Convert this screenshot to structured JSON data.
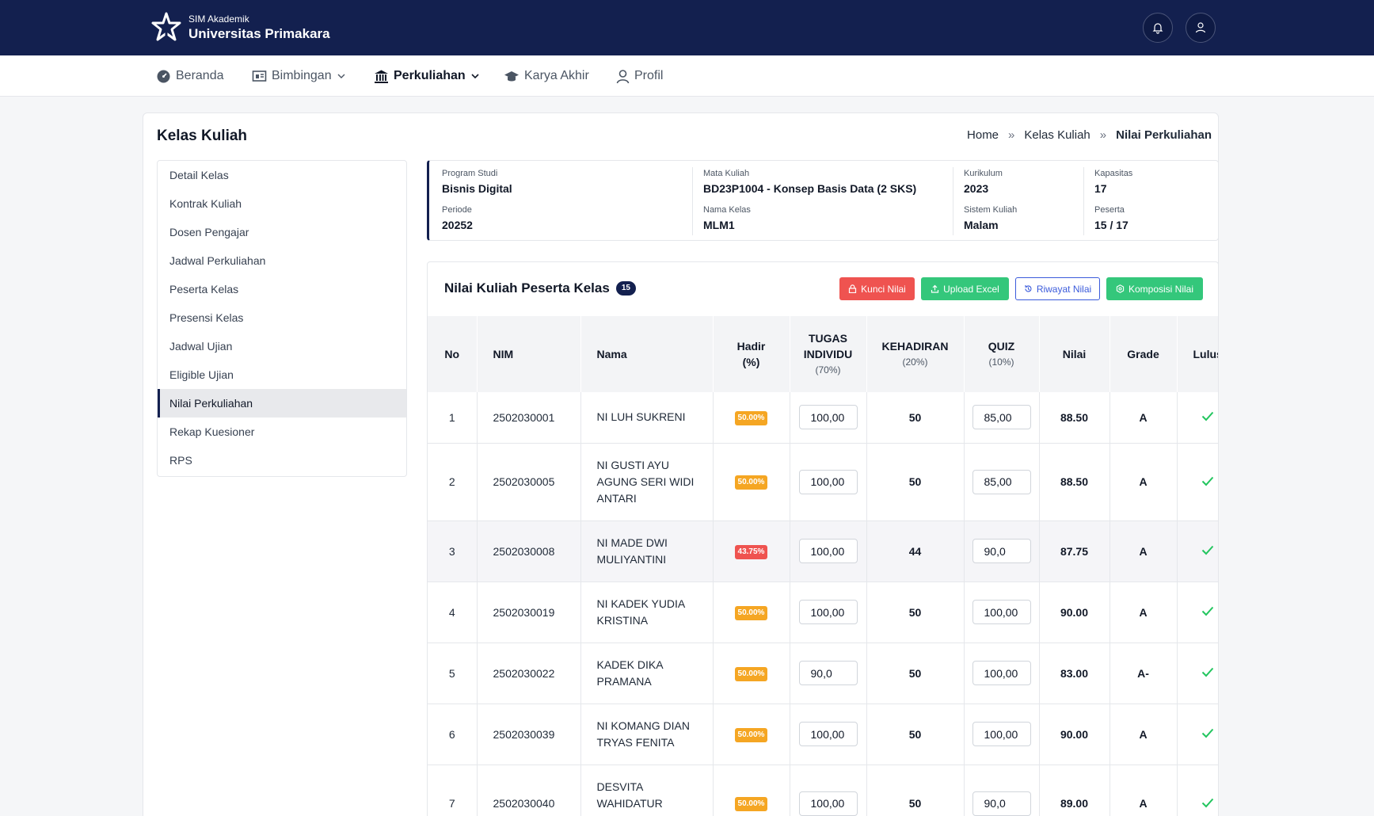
{
  "brand": {
    "subtitle": "SIM Akademik",
    "title": "Universitas Primakara"
  },
  "nav": [
    {
      "label": "Beranda",
      "icon": "dashboard-icon"
    },
    {
      "label": "Bimbingan",
      "icon": "classroom-icon"
    },
    {
      "label": "Perkuliahan",
      "icon": "institution-icon"
    },
    {
      "label": "Karya Akhir",
      "icon": "graduation-cap-icon"
    },
    {
      "label": "Profil",
      "icon": "user-icon"
    }
  ],
  "page": {
    "title": "Kelas Kuliah",
    "breadcrumb": [
      "Home",
      "Kelas Kuliah",
      "Nilai Perkuliahan"
    ],
    "breadcrumb_sep": "»"
  },
  "sidebar": {
    "items": [
      "Detail Kelas",
      "Kontrak Kuliah",
      "Dosen Pengajar",
      "Jadwal Perkuliahan",
      "Peserta Kelas",
      "Presensi Kelas",
      "Jadwal Ujian",
      "Eligible Ujian",
      "Nilai Perkuliahan",
      "Rekap Kuesioner",
      "RPS"
    ],
    "active": "Nilai Perkuliahan"
  },
  "info": {
    "program_studi": {
      "label": "Program Studi",
      "value": "Bisnis Digital"
    },
    "mata_kuliah": {
      "label": "Mata Kuliah",
      "value": "BD23P1004 - Konsep Basis Data (2 SKS)"
    },
    "kurikulum": {
      "label": "Kurikulum",
      "value": "2023"
    },
    "kapasitas": {
      "label": "Kapasitas",
      "value": "17"
    },
    "periode": {
      "label": "Periode",
      "value": "20252"
    },
    "nama_kelas": {
      "label": "Nama Kelas",
      "value": "MLM1"
    },
    "sistem_kuliah": {
      "label": "Sistem Kuliah",
      "value": "Malam"
    },
    "peserta": {
      "label": "Peserta",
      "value": "15 / 17"
    }
  },
  "grades": {
    "title": "Nilai Kuliah Peserta Kelas",
    "count": "15",
    "buttons": {
      "kunci": "Kunci Nilai",
      "upload": "Upload Excel",
      "riwayat": "Riwayat Nilai",
      "komposisi": "Komposisi Nilai"
    },
    "columns": {
      "no": "No",
      "nim": "NIM",
      "nama": "Nama",
      "hadir": "Hadir",
      "hadir_sub": "(%)",
      "tugas": "TUGAS INDIVIDU",
      "tugas_sub": "(70%)",
      "kehadiran": "KEHADIRAN",
      "kehadiran_sub": "(20%)",
      "quiz": "QUIZ",
      "quiz_sub": "(10%)",
      "nilai": "Nilai",
      "grade": "Grade",
      "lulus": "Lulus"
    },
    "rows": [
      {
        "no": "1",
        "nim": "2502030001",
        "nama": "NI LUH SUKRENI",
        "hadir": "50.00%",
        "hadir_low": false,
        "tugas": "100,00",
        "kehadiran": "50",
        "quiz": "85,00",
        "nilai": "88.50",
        "grade": "A"
      },
      {
        "no": "2",
        "nim": "2502030005",
        "nama": "NI GUSTI AYU AGUNG SERI WIDI ANTARI",
        "hadir": "50.00%",
        "hadir_low": false,
        "tugas": "100,00",
        "kehadiran": "50",
        "quiz": "85,00",
        "nilai": "88.50",
        "grade": "A"
      },
      {
        "no": "3",
        "nim": "2502030008",
        "nama": "NI MADE DWI MULIYANTINI",
        "hadir": "43.75%",
        "hadir_low": true,
        "tugas": "100,00",
        "kehadiran": "44",
        "quiz": "90,0",
        "nilai": "87.75",
        "grade": "A"
      },
      {
        "no": "4",
        "nim": "2502030019",
        "nama": "NI KADEK YUDIA KRISTINA",
        "hadir": "50.00%",
        "hadir_low": false,
        "tugas": "100,00",
        "kehadiran": "50",
        "quiz": "100,00",
        "nilai": "90.00",
        "grade": "A"
      },
      {
        "no": "5",
        "nim": "2502030022",
        "nama": "KADEK DIKA PRAMANA",
        "hadir": "50.00%",
        "hadir_low": false,
        "tugas": "90,0",
        "kehadiran": "50",
        "quiz": "100,00",
        "nilai": "83.00",
        "grade": "A-"
      },
      {
        "no": "6",
        "nim": "2502030039",
        "nama": "NI KOMANG DIAN TRYAS FENITA",
        "hadir": "50.00%",
        "hadir_low": false,
        "tugas": "100,00",
        "kehadiran": "50",
        "quiz": "100,00",
        "nilai": "90.00",
        "grade": "A"
      },
      {
        "no": "7",
        "nim": "2502030040",
        "nama": "DESVITA WAHIDATUR ROHMAH",
        "hadir": "50.00%",
        "hadir_low": false,
        "tugas": "100,00",
        "kehadiran": "50",
        "quiz": "90,0",
        "nilai": "89.00",
        "grade": "A"
      }
    ]
  },
  "colors": {
    "primary": "#13204f",
    "badge_ok": "#f5a623",
    "badge_low": "#ef5350",
    "btn_red": "#ef5350",
    "btn_green": "#34c77b",
    "btn_outline": "#3b5bdb",
    "check": "#22c55e"
  }
}
